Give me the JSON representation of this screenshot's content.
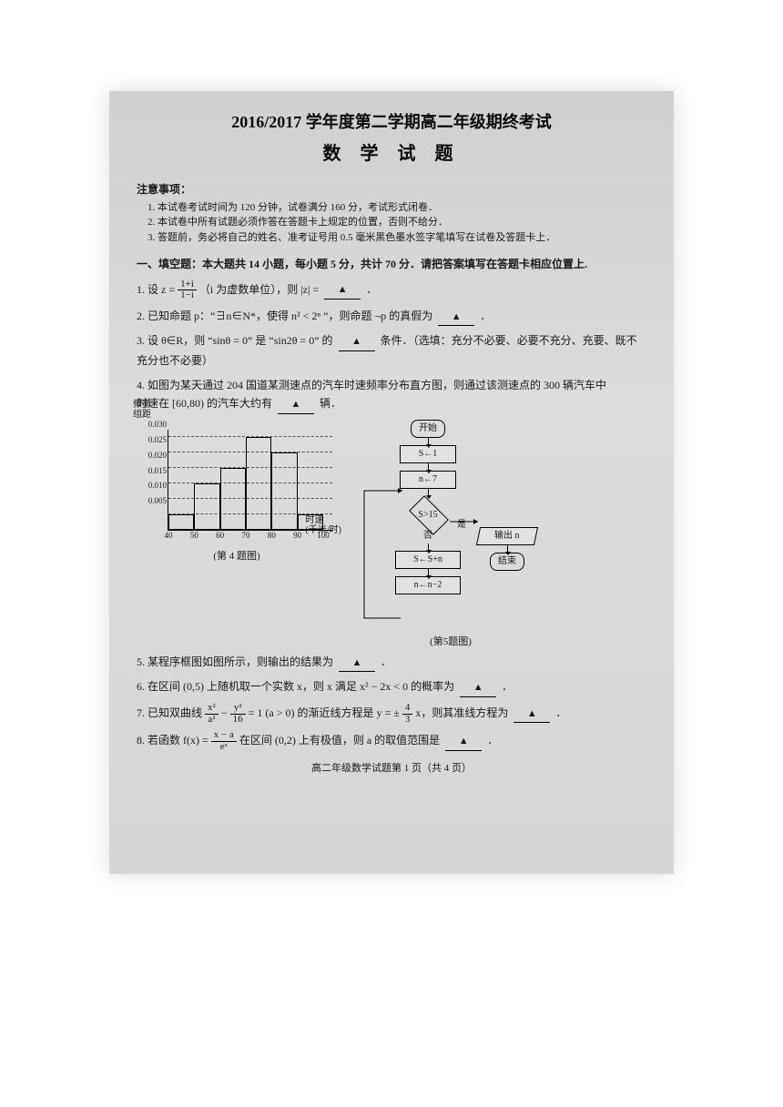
{
  "header": {
    "title_line1": "2016/2017 学年度第二学期高二年级期终考试",
    "title_line2": "数  学  试  题"
  },
  "notice": {
    "head": "注意事项：",
    "items": [
      "1. 本试卷考试时间为 120 分钟，试卷满分 160 分，考试形式闭卷．",
      "2. 本试卷中所有试题必须作答在答题卡上规定的位置，否则不给分．",
      "3. 答题前，务必将自己的姓名、准考证号用 0.5 毫米黑色墨水签字笔填写在试卷及答题卡上．"
    ]
  },
  "section1": {
    "head": "一、填空题：本大题共 14 小题，每小题 5 分，共计 70 分．请把答案填写在答题卡相应位置上."
  },
  "q1": {
    "pre": "1. 设 z = ",
    "frac_num": "1+i",
    "frac_den": "1−i",
    "post": "（i 为虚数单位），则 |z| = ",
    "end": "．"
  },
  "q2": {
    "text": "2. 已知命题 p：“∃n∈N*，使得  n² < 2ⁿ ”，则命题 ¬p 的真假为",
    "end": "．"
  },
  "q3": {
    "text": "3. 设 θ∈R，则 “sinθ = 0” 是 “sin2θ = 0” 的",
    "end": "条件．（选填：充分不必要、必要不充分、充要、既不充分也不必要）"
  },
  "q4": {
    "text_a": "4. 如图为某天通过 204 国道某测速点的汽车时速频率分布直方图，则通过该测速点的 300 辆汽车中",
    "text_b": "时速在 [60,80) 的汽车大约有",
    "end": "辆．"
  },
  "q5": {
    "text": "5. 某程序框图如图所示，则输出的结果为",
    "end": "．"
  },
  "q6": {
    "text": "6. 在区间 (0,5) 上随机取一个实数 x，则 x 满足 x² − 2x < 0 的概率为",
    "end": "．"
  },
  "q7": {
    "pre": "7. 已知双曲线 ",
    "frac1_num": "x²",
    "frac1_den": "a²",
    "mid": " − ",
    "frac2_num": "y²",
    "frac2_den": "16",
    "post1": " = 1 (a > 0) 的渐近线方程是 y = ±",
    "frac3_num": "4",
    "frac3_den": "3",
    "post2": " x，则其准线方程为",
    "end": "．"
  },
  "q8": {
    "pre": "8. 若函数 f(x) = ",
    "frac_num": "x − a",
    "frac_den": "eˣ",
    "post": " 在区间 (0,2) 上有极值，则 a 的取值范围是",
    "end": "．"
  },
  "footer": "高二年级数学试题第 1 页（共 4 页）",
  "histogram": {
    "type": "histogram",
    "y_title": "频率\n组距",
    "x_title": "时速\n(千米/时)",
    "caption": "(第 4 题图)",
    "x_ticks": [
      40,
      50,
      60,
      70,
      80,
      90,
      100
    ],
    "y_ticks": [
      0.005,
      0.01,
      0.015,
      0.02,
      0.025,
      0.03
    ],
    "bars": [
      {
        "x0": 40,
        "x1": 50,
        "h": 0.005
      },
      {
        "x0": 50,
        "x1": 60,
        "h": 0.015
      },
      {
        "x0": 60,
        "x1": 70,
        "h": 0.02
      },
      {
        "x0": 70,
        "x1": 80,
        "h": 0.03
      },
      {
        "x0": 80,
        "x1": 90,
        "h": 0.025
      },
      {
        "x0": 90,
        "x1": 100,
        "h": 0.005
      }
    ],
    "xlim": [
      40,
      100
    ],
    "ylim": [
      0,
      0.032
    ],
    "bar_border_color": "#000000",
    "dash_color": "#555555",
    "font_size": 9
  },
  "flowchart": {
    "type": "flowchart",
    "caption": "(第5题图)",
    "nodes": {
      "start": "开始",
      "s_init": "S←1",
      "n_init": "n←7",
      "cond": "S>15",
      "yes": "是",
      "no": "否",
      "s_upd": "S←S+n",
      "n_upd": "n←n−2",
      "out": "输出 n",
      "end": "结束"
    },
    "border_color": "#000000",
    "font_size": 10
  }
}
